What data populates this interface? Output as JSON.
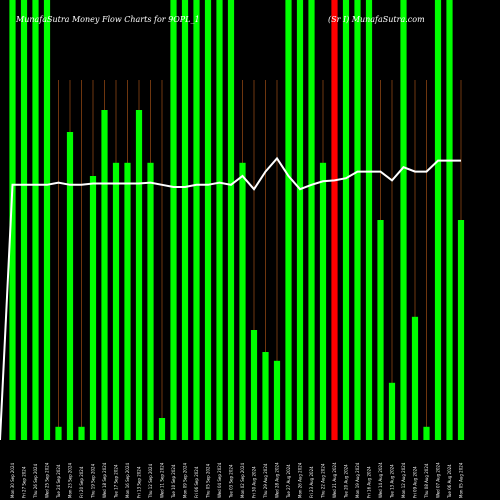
{
  "chart_data": {
    "type": "bar",
    "title": "MunafaSutra  Money Flow  Charts for 9OPL_1 … (Sr I) MunafaSutra.com",
    "title_visible_parts": [
      "MunafaSutra  Money Flow  Charts for 9OPL_1",
      "(Sr I) MunafaSutra.com"
    ],
    "xlabel": "",
    "ylabel": "",
    "ylim": [
      0,
      100
    ],
    "grid": "vertical",
    "legend": "none",
    "categories": [
      "Mon 30 Sep 2024",
      "Fri 27 Sep 2024",
      "Thu 26 Sep 2024",
      "Wed 25 Sep 2024",
      "Tue 24 Sep 2024",
      "Mon 23 Sep 2024",
      "Fri 20 Sep 2024",
      "Thu 19 Sep 2024",
      "Wed 18 Sep 2024",
      "Tue 17 Sep 2024",
      "Mon 16 Sep 2024",
      "Fri 13 Sep 2024",
      "Thu 12 Sep 2024",
      "Wed 11 Sep 2024",
      "Tue 10 Sep 2024",
      "Mon 09 Sep 2024",
      "Fri 06 Sep 2024",
      "Thu 05 Sep 2024",
      "Wed 04 Sep 2024",
      "Tue 03 Sep 2024",
      "Mon 02 Sep 2024",
      "Fri 30 Aug 2024",
      "Thu 29 Aug 2024",
      "Wed 28 Aug 2024",
      "Tue 27 Aug 2024",
      "Mon 26 Aug 2024",
      "Fri 23 Aug 2024",
      "Thu 22 Aug 2024",
      "Wed 21 Aug 2024",
      "Tue 20 Aug 2024",
      "Mon 19 Aug 2024",
      "Fri 16 Aug 2024",
      "Wed 14 Aug 2024",
      "Tue 13 Aug 2024",
      "Mon 12 Aug 2024",
      "Fri 09 Aug 2024",
      "Thu 08 Aug 2024",
      "Wed 07 Aug 2024",
      "Tue 06 Aug 2024",
      "Mon 05 Aug 2024"
    ],
    "series": [
      {
        "type": "bar",
        "values": [
          100,
          100,
          100,
          100,
          3,
          70,
          3,
          60,
          75,
          63,
          63,
          75,
          63,
          5,
          100,
          100,
          100,
          100,
          100,
          100,
          63,
          25,
          20,
          18,
          100,
          100,
          100,
          63,
          100,
          100,
          100,
          100,
          50,
          13,
          100,
          28,
          3,
          100,
          100,
          50
        ],
        "colors": [
          "#00ff00",
          "#00ff00",
          "#00ff00",
          "#00ff00",
          "#00ff00",
          "#00ff00",
          "#00ff00",
          "#00ff00",
          "#00ff00",
          "#00ff00",
          "#00ff00",
          "#00ff00",
          "#00ff00",
          "#00ff00",
          "#00ff00",
          "#00ff00",
          "#00ff00",
          "#00ff00",
          "#00ff00",
          "#00ff00",
          "#00ff00",
          "#00ff00",
          "#00ff00",
          "#00ff00",
          "#00ff00",
          "#00ff00",
          "#00ff00",
          "#00ff00",
          "#ff0000",
          "#00ff00",
          "#00ff00",
          "#00ff00",
          "#00ff00",
          "#00ff00",
          "#00ff00",
          "#00ff00",
          "#00ff00",
          "#00ff00",
          "#00ff00",
          "#00ff00"
        ]
      },
      {
        "type": "line",
        "color": "#ffffff",
        "values": [
          58,
          58,
          58,
          58,
          58.5,
          58,
          58,
          58.3,
          58.3,
          58.3,
          58.3,
          58.3,
          58.5,
          58,
          57.5,
          57.5,
          58,
          58,
          58.5,
          58,
          60,
          57,
          61,
          64,
          60,
          57,
          58,
          58.8,
          59,
          59.5,
          61,
          61,
          61,
          59,
          62,
          61,
          61,
          63.5,
          63.5,
          63.5
        ]
      }
    ],
    "colors": {
      "background": "#000000",
      "up": "#00ff00",
      "down": "#ff0000",
      "grid": "#8b4513",
      "line": "#ffffff"
    }
  }
}
